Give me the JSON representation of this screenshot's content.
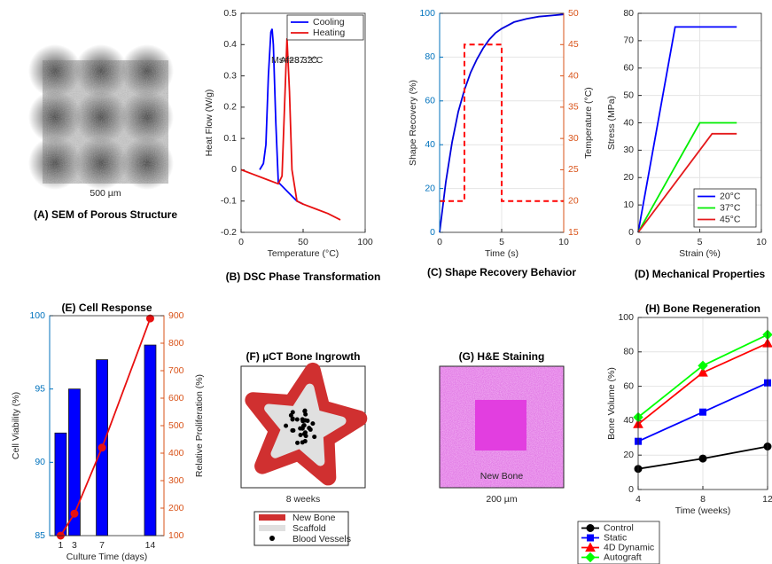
{
  "chart_data": [
    {
      "type": "line",
      "title": "(B) DSC Phase Transformation",
      "xlabel": "Temperature (°C)",
      "ylabel": "Heat Flow (W/g)",
      "xlim": [
        0,
        100
      ],
      "xticks": [
        0,
        50,
        100
      ],
      "ylim": [
        -0.2,
        0.5
      ],
      "yticks": [
        -0.2,
        -0.1,
        0,
        0.1,
        0.2,
        0.3,
        0.4,
        0.5
      ],
      "grid": false,
      "legend": "upper right",
      "annotations": [
        "Ms=28.3°C",
        "Af=37.2°C"
      ],
      "series": [
        {
          "name": "Cooling",
          "color": "#0000ff",
          "x": [
            15,
            18,
            20,
            22,
            24,
            25,
            26,
            28,
            30,
            35,
            40,
            45,
            50
          ],
          "values": [
            0.0,
            0.02,
            0.08,
            0.3,
            0.44,
            0.45,
            0.4,
            0.15,
            -0.04,
            -0.06,
            -0.08,
            -0.1,
            -0.11
          ]
        },
        {
          "name": "Heating",
          "color": "#e81010",
          "x": [
            0,
            10,
            20,
            30,
            33,
            35,
            37,
            39,
            41,
            45,
            50,
            60,
            70,
            80
          ],
          "values": [
            0,
            -0.015,
            -0.03,
            -0.045,
            -0.02,
            0.2,
            0.42,
            0.25,
            0.0,
            -0.1,
            -0.11,
            -0.125,
            -0.14,
            -0.16
          ]
        }
      ]
    },
    {
      "type": "line",
      "title": "(C) Shape Recovery Behavior",
      "xlabel": "Time (s)",
      "ylabel": "Shape Recovery (%)",
      "y2label": "Temperature (°C)",
      "xlim": [
        0,
        10
      ],
      "xticks": [
        0,
        5,
        10
      ],
      "ylim": [
        0,
        100
      ],
      "yticks": [
        0,
        20,
        40,
        60,
        80,
        100
      ],
      "y2lim": [
        15,
        50
      ],
      "y2ticks": [
        15,
        20,
        25,
        30,
        35,
        40,
        45,
        50
      ],
      "y_axis_color": "#0072bd",
      "y2_axis_color": "#d95319",
      "grid": true,
      "series": [
        {
          "color": "#0000dd",
          "x": [
            0,
            0.5,
            1,
            1.5,
            2,
            2.5,
            3,
            3.5,
            4,
            4.5,
            5,
            6,
            7,
            8,
            9,
            10
          ],
          "values": [
            0,
            23,
            41,
            55,
            65,
            73,
            79,
            84,
            88,
            91,
            93,
            96,
            97.5,
            98.5,
            99,
            99.5
          ]
        },
        {
          "color": "#ff0000",
          "linestyle": "dashed",
          "axis": "y2",
          "x": [
            0,
            2,
            2,
            5,
            5,
            10
          ],
          "values": [
            20,
            20,
            45,
            45,
            20,
            20
          ]
        }
      ]
    },
    {
      "type": "line",
      "title": "(D) Mechanical Properties",
      "xlabel": "Strain (%)",
      "ylabel": "Stress (MPa)",
      "xlim": [
        0,
        10
      ],
      "xticks": [
        0,
        5,
        10
      ],
      "ylim": [
        0,
        80
      ],
      "yticks": [
        0,
        10,
        20,
        30,
        40,
        50,
        60,
        70,
        80
      ],
      "grid": true,
      "legend": "lower right",
      "series": [
        {
          "name": "20°C",
          "color": "#0000ff",
          "x": [
            0,
            3,
            8
          ],
          "values": [
            0,
            75,
            75
          ]
        },
        {
          "name": "37°C",
          "color": "#00ee00",
          "x": [
            0,
            5,
            8
          ],
          "values": [
            0,
            40,
            40
          ]
        },
        {
          "name": "45°C",
          "color": "#e41a1c",
          "x": [
            0,
            6,
            8
          ],
          "values": [
            0,
            36,
            36
          ]
        }
      ]
    },
    {
      "type": "bar",
      "title": "(E) Cell Response",
      "xlabel": "Culture Time (days)",
      "ylabel": "Cell Viability (%)",
      "y2label": "Relative Proliferation (%)",
      "x": [
        1,
        3,
        7,
        14
      ],
      "xlim": [
        -0.6,
        16
      ],
      "xticks": [
        1,
        3,
        7,
        14
      ],
      "ylim": [
        85,
        100
      ],
      "yticks": [
        85,
        90,
        95,
        100
      ],
      "y2lim": [
        100,
        900
      ],
      "y2ticks": [
        100,
        200,
        300,
        400,
        500,
        600,
        700,
        800,
        900
      ],
      "y_axis_color": "#0072bd",
      "y2_axis_color": "#d95319",
      "grid": false,
      "series": [
        {
          "type": "bar",
          "color": "#0000ff",
          "values": [
            92,
            95,
            97,
            98
          ]
        },
        {
          "type": "line",
          "axis": "y2",
          "color": "#e81010",
          "marker": "circle",
          "values": [
            100,
            180,
            420,
            890
          ]
        }
      ]
    },
    {
      "type": "line",
      "title": "(H) Bone Regeneration",
      "xlabel": "Time (weeks)",
      "ylabel": "Bone Volume (%)",
      "x": [
        4,
        8,
        12
      ],
      "xlim": [
        4,
        12
      ],
      "xticks": [
        4,
        8,
        12
      ],
      "ylim": [
        0,
        100
      ],
      "yticks": [
        0,
        20,
        40,
        60,
        80,
        100
      ],
      "grid": true,
      "legend": "below",
      "series": [
        {
          "name": "Control",
          "color": "#000000",
          "marker": "circle",
          "values": [
            12,
            18,
            25
          ]
        },
        {
          "name": "Static",
          "color": "#0000ff",
          "marker": "square",
          "values": [
            28,
            45,
            62
          ]
        },
        {
          "name": "4D Dynamic",
          "color": "#ff0000",
          "marker": "triangle",
          "values": [
            38,
            68,
            85
          ]
        },
        {
          "name": "Autograft",
          "color": "#00ff00",
          "marker": "diamond",
          "values": [
            42,
            72,
            90
          ]
        }
      ]
    }
  ],
  "images": {
    "sem": {
      "title": "(A) SEM of Porous Structure",
      "scale": "500 µm"
    },
    "micro_ct": {
      "title": "(F) µCT Bone Ingrowth",
      "caption": "8 weeks",
      "legend": [
        "New Bone",
        "Scaffold",
        "Blood Vessels"
      ]
    },
    "histology": {
      "title": "(G) H&E Staining",
      "label": "New Bone",
      "scale": "200 µm"
    }
  }
}
